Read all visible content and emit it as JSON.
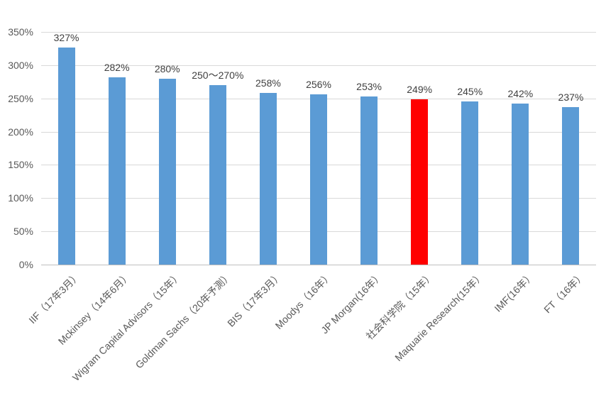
{
  "chart_data": {
    "type": "bar",
    "title": "",
    "xlabel": "",
    "ylabel": "",
    "categories": [
      "IIF（17年3月）",
      "Mckinsey（14年6月）",
      "Wigram Capital Advisors（15年）",
      "Goldman Sachs（20年予測）",
      "BIS（17年3月）",
      "Moodys（16年）",
      "JP Morgan(16年）",
      "社会科学院（15年）",
      "Maquarie Research(15年）",
      "IMF(16年）",
      "FT（16年）"
    ],
    "values": [
      327,
      282,
      280,
      270,
      258,
      256,
      253,
      249,
      245,
      242,
      237
    ],
    "data_labels": [
      "327%",
      "282%",
      "280%",
      "250〜270%",
      "258%",
      "256%",
      "253%",
      "249%",
      "245%",
      "242%",
      "237%"
    ],
    "highlight_index": 7,
    "ylim": [
      0,
      350
    ],
    "ytick_step": 50,
    "ytick_labels": [
      "0%",
      "50%",
      "100%",
      "150%",
      "200%",
      "250%",
      "300%",
      "350%"
    ],
    "grid": true,
    "legend": false,
    "x_labels_rotation_deg": -45,
    "colors": {
      "bar": "#5B9BD5",
      "highlight": "#FF0000",
      "gridline": "#D9D9D9",
      "axis_line": "#BFBFBF",
      "axis_text": "#595959",
      "data_label_text": "#404040",
      "background": "#FFFFFF"
    }
  }
}
